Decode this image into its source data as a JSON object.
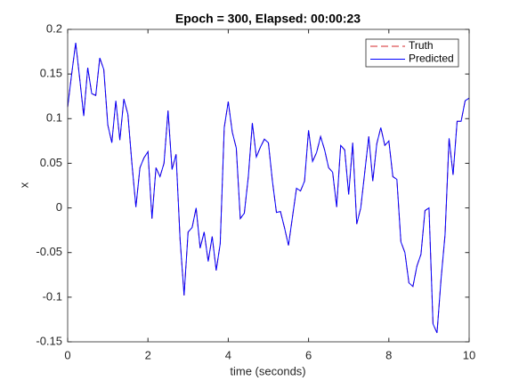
{
  "chart_data": {
    "type": "line",
    "title": "Epoch = 300, Elapsed: 00:00:23",
    "xlabel": "time (seconds)",
    "ylabel": "x",
    "x": [
      0,
      0.1,
      0.2,
      0.3,
      0.4,
      0.5,
      0.6,
      0.7,
      0.8,
      0.9,
      1,
      1.1,
      1.2,
      1.3,
      1.4,
      1.5,
      1.6,
      1.7,
      1.8,
      1.9,
      2,
      2.1,
      2.2,
      2.3,
      2.4,
      2.5,
      2.6,
      2.7,
      2.8,
      2.9,
      3,
      3.1,
      3.2,
      3.3,
      3.4,
      3.5,
      3.6,
      3.7,
      3.8,
      3.9,
      4,
      4.1,
      4.2,
      4.3,
      4.4,
      4.5,
      4.6,
      4.7,
      4.8,
      4.9,
      5,
      5.1,
      5.2,
      5.3,
      5.4,
      5.5,
      5.6,
      5.7,
      5.8,
      5.9,
      6,
      6.1,
      6.2,
      6.3,
      6.4,
      6.5,
      6.6,
      6.7,
      6.8,
      6.9,
      7,
      7.1,
      7.2,
      7.3,
      7.4,
      7.5,
      7.6,
      7.7,
      7.8,
      7.9,
      8,
      8.1,
      8.2,
      8.3,
      8.4,
      8.5,
      8.6,
      8.7,
      8.8,
      8.9,
      9,
      9.1,
      9.2,
      9.3,
      9.4,
      9.5,
      9.6,
      9.7,
      9.8,
      9.9,
      10
    ],
    "series": [
      {
        "name": "Truth",
        "color": "#d62728",
        "dash": true,
        "values": [
          0.113,
          0.15,
          0.185,
          0.145,
          0.103,
          0.157,
          0.128,
          0.126,
          0.168,
          0.155,
          0.093,
          0.073,
          0.12,
          0.076,
          0.122,
          0.105,
          0.05,
          0.001,
          0.045,
          0.056,
          0.063,
          -0.012,
          0.045,
          0.035,
          0.05,
          0.109,
          0.043,
          0.06,
          -0.035,
          -0.098,
          -0.027,
          -0.022,
          0,
          -0.045,
          -0.027,
          -0.06,
          -0.032,
          -0.07,
          -0.04,
          0.09,
          0.119,
          0.085,
          0.067,
          -0.012,
          -0.006,
          0.035,
          0.095,
          0.057,
          0.068,
          0.077,
          0.073,
          0.03,
          -0.005,
          -0.004,
          -0.022,
          -0.042,
          -0.01,
          0.022,
          0.019,
          0.03,
          0.087,
          0.052,
          0.062,
          0.08,
          0.065,
          0.045,
          0.04,
          0.001,
          0.07,
          0.065,
          0.015,
          0.073,
          -0.018,
          0,
          0.04,
          0.08,
          0.03,
          0.072,
          0.09,
          0.07,
          0.075,
          0.035,
          0.032,
          -0.038,
          -0.05,
          -0.084,
          -0.088,
          -0.065,
          -0.052,
          -0.003,
          0,
          -0.13,
          -0.14,
          -0.08,
          -0.03,
          0.078,
          0.037,
          0.097,
          0.097,
          0.12,
          0.123
        ]
      },
      {
        "name": "Predicted",
        "color": "#0000ff",
        "dash": false,
        "values": [
          0.113,
          0.15,
          0.185,
          0.145,
          0.103,
          0.157,
          0.128,
          0.126,
          0.168,
          0.155,
          0.093,
          0.073,
          0.12,
          0.076,
          0.122,
          0.105,
          0.05,
          0.001,
          0.045,
          0.056,
          0.063,
          -0.012,
          0.045,
          0.035,
          0.05,
          0.109,
          0.043,
          0.06,
          -0.035,
          -0.098,
          -0.027,
          -0.022,
          0,
          -0.045,
          -0.027,
          -0.06,
          -0.032,
          -0.07,
          -0.04,
          0.09,
          0.119,
          0.085,
          0.067,
          -0.012,
          -0.006,
          0.035,
          0.095,
          0.057,
          0.068,
          0.077,
          0.073,
          0.03,
          -0.005,
          -0.004,
          -0.022,
          -0.042,
          -0.01,
          0.022,
          0.019,
          0.03,
          0.087,
          0.052,
          0.062,
          0.08,
          0.065,
          0.045,
          0.04,
          0.001,
          0.07,
          0.065,
          0.015,
          0.073,
          -0.018,
          0,
          0.04,
          0.08,
          0.03,
          0.072,
          0.09,
          0.07,
          0.075,
          0.035,
          0.032,
          -0.038,
          -0.05,
          -0.084,
          -0.088,
          -0.065,
          -0.052,
          -0.003,
          0,
          -0.13,
          -0.14,
          -0.08,
          -0.03,
          0.078,
          0.037,
          0.097,
          0.097,
          0.12,
          0.123
        ]
      }
    ],
    "xlim": [
      0,
      10
    ],
    "xticks": [
      0,
      2,
      4,
      6,
      8,
      10
    ],
    "ylim": [
      -0.15,
      0.2
    ],
    "yticks": [
      -0.15,
      -0.1,
      -0.05,
      0,
      0.05,
      0.1,
      0.15,
      0.2
    ],
    "legend": "upper right",
    "grid": false
  }
}
